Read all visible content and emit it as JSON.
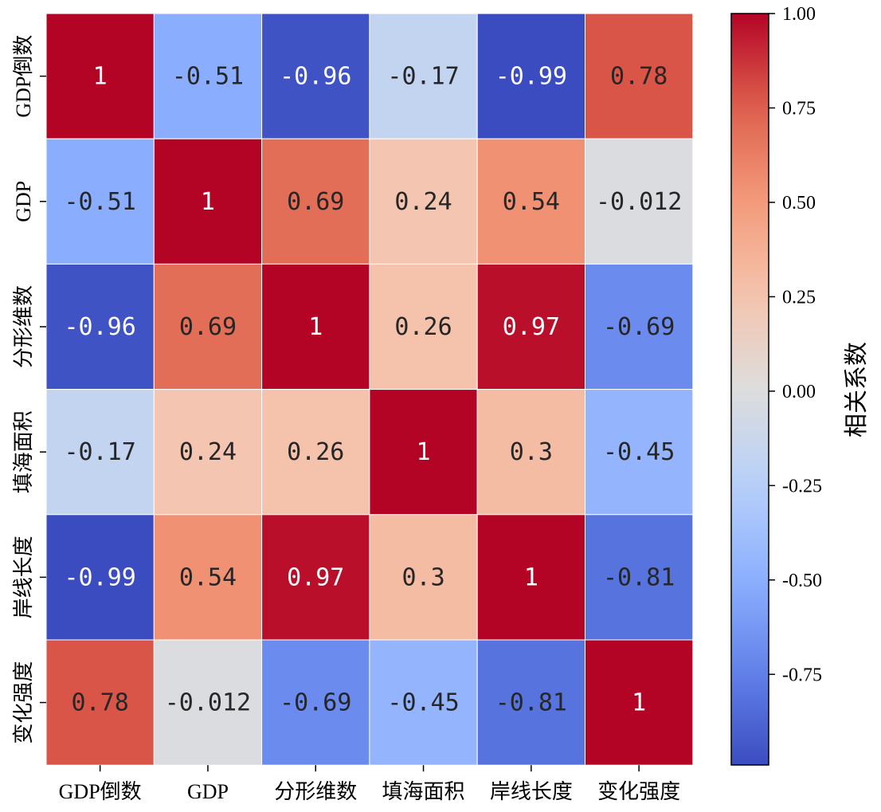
{
  "chart_data": {
    "type": "heatmap",
    "title": "",
    "rows": [
      "GDP倒数",
      "GDP",
      "分形维数",
      "填海面积",
      "岸线长度",
      "变化强度"
    ],
    "columns": [
      "GDP倒数",
      "GDP",
      "分形维数",
      "填海面积",
      "岸线长度",
      "变化强度"
    ],
    "values": [
      [
        1,
        -0.51,
        -0.96,
        -0.17,
        -0.99,
        0.78
      ],
      [
        -0.51,
        1,
        0.69,
        0.24,
        0.54,
        -0.012
      ],
      [
        -0.96,
        0.69,
        1,
        0.26,
        0.97,
        -0.69
      ],
      [
        -0.17,
        0.24,
        0.26,
        1,
        0.3,
        -0.45
      ],
      [
        -0.99,
        0.54,
        0.97,
        0.3,
        1,
        -0.81
      ],
      [
        0.78,
        -0.012,
        -0.69,
        -0.45,
        -0.81,
        1
      ]
    ],
    "annotations": [
      [
        "1",
        "-0.51",
        "-0.96",
        "-0.17",
        "-0.99",
        "0.78"
      ],
      [
        "-0.51",
        "1",
        "0.69",
        "0.24",
        "0.54",
        "-0.012"
      ],
      [
        "-0.96",
        "0.69",
        "1",
        "0.26",
        "0.97",
        "-0.69"
      ],
      [
        "-0.17",
        "0.24",
        "0.26",
        "1",
        "0.3",
        "-0.45"
      ],
      [
        "-0.99",
        "0.54",
        "0.97",
        "0.3",
        "1",
        "-0.81"
      ],
      [
        "0.78",
        "-0.012",
        "-0.69",
        "-0.45",
        "-0.81",
        "1"
      ]
    ],
    "colormap": "coolwarm",
    "vmin": -0.99,
    "vmax": 1.0,
    "colorbar": {
      "label": "相关系数",
      "ticks": [
        1.0,
        0.75,
        0.5,
        0.25,
        0.0,
        -0.25,
        -0.5,
        -0.75
      ],
      "tick_labels": [
        "1.00",
        "0.75",
        "0.50",
        "0.25",
        "0.00",
        "-0.25",
        "-0.50",
        "-0.75"
      ]
    },
    "colors": {
      "low": "#3b4cc0",
      "mid": "#dddddd",
      "high": "#b40426",
      "grid": "#ffffff"
    }
  }
}
